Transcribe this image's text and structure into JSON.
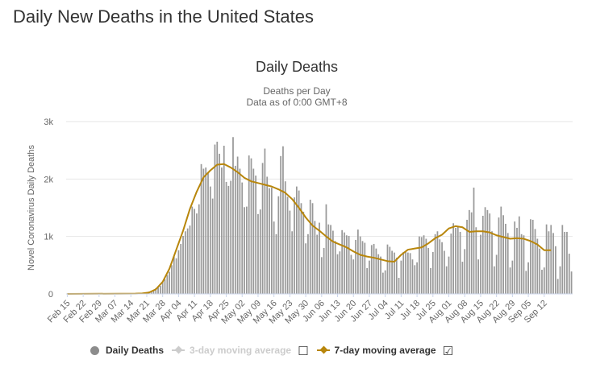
{
  "page": {
    "title": "Daily New Deaths in the United States"
  },
  "chart_data": {
    "type": "bar",
    "title": "Daily Deaths",
    "subtitle": "Deaths per Day",
    "subtitle2": "Data as of 0:00 GMT+8",
    "ylabel": "Novel Coronavirus Daily Deaths",
    "ylim": [
      0,
      3000
    ],
    "yticks": [
      0,
      1000,
      2000,
      3000
    ],
    "ytick_labels": [
      "0",
      "1k",
      "2k",
      "3k"
    ],
    "start_date": "Feb 15",
    "xtick_labels": [
      "Feb 15",
      "Feb 22",
      "Feb 29",
      "Mar 07",
      "Mar 14",
      "Mar 21",
      "Mar 28",
      "Apr 04",
      "Apr 11",
      "Apr 18",
      "Apr 25",
      "May 02",
      "May 09",
      "May 16",
      "May 23",
      "May 30",
      "Jun 06",
      "Jun 13",
      "Jun 20",
      "Jun 27",
      "Jul 04",
      "Jul 11",
      "Jul 18",
      "Jul 25",
      "Aug 01",
      "Aug 08",
      "Aug 15",
      "Aug 22",
      "Aug 29",
      "Sep 05",
      "Sep 12"
    ],
    "grid": true,
    "legend_position": "bottom",
    "colors": {
      "bars": "#999999",
      "ma7": "#b8860b",
      "grid": "#e6e6e6"
    },
    "series": [
      {
        "name": "Daily Deaths",
        "type": "bar",
        "values": [
          0,
          0,
          0,
          0,
          0,
          0,
          0,
          0,
          0,
          0,
          0,
          0,
          0,
          0,
          0,
          1,
          0,
          0,
          0,
          1,
          0,
          1,
          1,
          1,
          1,
          1,
          2,
          2,
          4,
          5,
          4,
          7,
          10,
          15,
          21,
          26,
          40,
          49,
          49,
          98,
          111,
          140,
          206,
          255,
          330,
          385,
          500,
          650,
          620,
          760,
          870,
          1010,
          1090,
          1140,
          1190,
          1520,
          1480,
          1400,
          1560,
          2260,
          2180,
          2200,
          2120,
          1870,
          1660,
          2600,
          2650,
          2440,
          2200,
          2580,
          1950,
          1880,
          1970,
          2730,
          2230,
          2390,
          2180,
          1940,
          1510,
          1520,
          2410,
          2360,
          2180,
          2060,
          1390,
          1470,
          2280,
          2530,
          2040,
          1840,
          1850,
          1260,
          1040,
          1700,
          2400,
          2570,
          1960,
          1690,
          1450,
          1090,
          1680,
          1870,
          1800,
          1580,
          1430,
          880,
          1040,
          1640,
          1580,
          1270,
          1030,
          1240,
          640,
          800,
          1560,
          1210,
          1200,
          1100,
          920,
          690,
          740,
          1110,
          1070,
          1020,
          1010,
          680,
          600,
          940,
          1120,
          1000,
          920,
          890,
          450,
          580,
          850,
          870,
          790,
          690,
          650,
          370,
          410,
          860,
          820,
          750,
          720,
          630,
          280,
          580,
          730,
          740,
          720,
          710,
          600,
          500,
          550,
          1000,
          990,
          1020,
          960,
          800,
          450,
          730,
          1040,
          1090,
          950,
          900,
          750,
          480,
          650,
          1050,
          1230,
          1150,
          1180,
          1080,
          560,
          780,
          1290,
          1460,
          1420,
          1850,
          1160,
          600,
          1030,
          1360,
          1510,
          1460,
          1400,
          1090,
          480,
          680,
          1330,
          1520,
          1370,
          1220,
          1060,
          460,
          580,
          1260,
          1150,
          1350,
          1040,
          1020,
          400,
          550,
          1300,
          1290,
          1130,
          960,
          790,
          420,
          460,
          1210,
          1090,
          1200,
          1060,
          830,
          260,
          480,
          1200,
          1080,
          1080,
          700,
          390
        ]
      },
      {
        "name": "3-day moving average",
        "type": "line",
        "visible": false
      },
      {
        "name": "7-day moving average",
        "type": "line",
        "visible": true,
        "anchor_days": [
          0,
          30,
          33,
          36,
          39,
          42,
          45,
          48,
          51,
          54,
          57,
          60,
          63,
          66,
          69,
          72,
          75,
          78,
          81,
          84,
          87,
          90,
          93,
          96,
          99,
          102,
          105,
          108,
          111,
          114,
          117,
          120,
          123,
          126,
          129,
          132,
          135,
          138,
          141,
          144,
          147,
          150,
          153,
          156,
          159,
          162,
          165,
          168,
          171,
          174,
          177,
          180,
          183,
          186,
          189,
          192,
          195,
          198,
          201,
          204,
          207,
          210,
          213
        ],
        "anchor_values": [
          0,
          5,
          9,
          25,
          80,
          210,
          440,
          770,
          1100,
          1480,
          1780,
          2030,
          2150,
          2250,
          2260,
          2200,
          2120,
          2020,
          1960,
          1930,
          1900,
          1870,
          1820,
          1760,
          1650,
          1500,
          1330,
          1190,
          1100,
          1000,
          910,
          860,
          810,
          740,
          680,
          650,
          630,
          600,
          570,
          560,
          680,
          770,
          790,
          810,
          880,
          970,
          1030,
          1140,
          1180,
          1160,
          1080,
          1090,
          1090,
          1070,
          1020,
          990,
          960,
          970,
          960,
          920,
          860,
          760,
          760
        ]
      }
    ],
    "legend": [
      {
        "label": "Daily Deaths",
        "active": true
      },
      {
        "label": "3-day moving average",
        "active": false,
        "checkbox": "☐"
      },
      {
        "label": "7-day moving average",
        "active": true,
        "checkbox": "☑"
      }
    ]
  }
}
